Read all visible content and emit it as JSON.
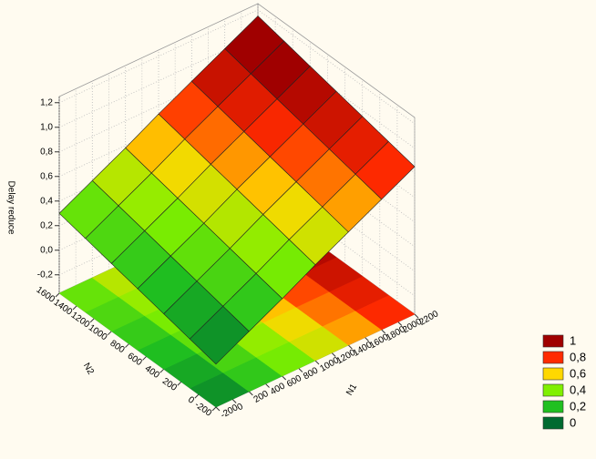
{
  "chart_data": {
    "type": "surface",
    "z_label": "Delay reduce",
    "x_label": "N1",
    "y_label": "N2",
    "x": [
      -200,
      200,
      600,
      1000,
      1400,
      1800,
      2200
    ],
    "y": [
      -200,
      100,
      400,
      700,
      1000,
      1300,
      1600
    ],
    "z": [
      [
        0,
        0.14,
        0.28,
        0.43,
        0.57,
        0.71,
        0.85
      ],
      [
        0.05,
        0.19,
        0.33,
        0.48,
        0.62,
        0.76,
        0.9
      ],
      [
        0.1,
        0.24,
        0.38,
        0.53,
        0.67,
        0.81,
        0.95
      ],
      [
        0.15,
        0.29,
        0.43,
        0.58,
        0.72,
        0.86,
        1.0
      ],
      [
        0.2,
        0.34,
        0.48,
        0.63,
        0.77,
        0.91,
        1.05
      ],
      [
        0.25,
        0.39,
        0.53,
        0.68,
        0.82,
        0.96,
        1.1
      ],
      [
        0.3,
        0.44,
        0.58,
        0.73,
        0.87,
        1.01,
        1.15
      ]
    ],
    "xlim": [
      -200,
      2200
    ],
    "ylim": [
      -200,
      1600
    ],
    "zlim": [
      -0.35,
      1.25
    ],
    "xticks": [
      -200,
      0,
      200,
      400,
      600,
      800,
      1000,
      1200,
      1400,
      1600,
      1800,
      2000,
      2200
    ],
    "yticks": [
      -200,
      0,
      200,
      400,
      600,
      800,
      1000,
      1200,
      1400,
      1600
    ],
    "zticks": [
      {
        "value": -0.2,
        "label": "-0,2"
      },
      {
        "value": 0,
        "label": "0,0"
      },
      {
        "value": 0.2,
        "label": "0,2"
      },
      {
        "value": 0.4,
        "label": "0,4"
      },
      {
        "value": 0.6,
        "label": "0,6"
      },
      {
        "value": 0.8,
        "label": "0,8"
      },
      {
        "value": 1,
        "label": "1,0"
      },
      {
        "value": 1.2,
        "label": "1,2"
      }
    ],
    "grid": true,
    "legend": {
      "position": "bottom-right",
      "levels": [
        {
          "value": 1,
          "label": "1",
          "color": "#a00000"
        },
        {
          "value": 0.8,
          "label": "0,8",
          "color": "#ff2a00"
        },
        {
          "value": 0.6,
          "label": "0,6",
          "color": "#ffd800"
        },
        {
          "value": 0.4,
          "label": "0,4",
          "color": "#80f000"
        },
        {
          "value": 0.2,
          "label": "0,2",
          "color": "#20c020"
        },
        {
          "value": 0,
          "label": "0",
          "color": "#006a30"
        }
      ]
    }
  }
}
